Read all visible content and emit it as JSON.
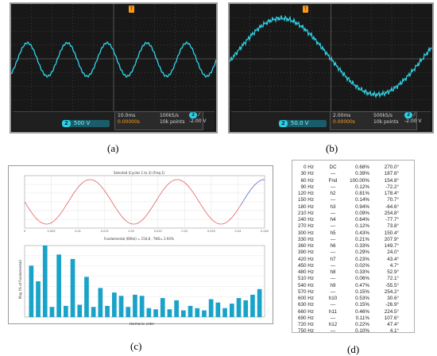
{
  "panel_a": {
    "caption": "(a)",
    "channel_num": "2",
    "volts_div": "500 V",
    "timebase": "10.0ms",
    "sample_rate": "100kS/s",
    "points": "10k points",
    "trigger_channel": "2",
    "trigger_level": "-2.00 V",
    "trigger_delay": "0.00000s",
    "trigger_marker": "T"
  },
  "panel_b": {
    "caption": "(b)",
    "channel_num": "2",
    "volts_div": "50.0 V",
    "timebase": "2.00ms",
    "sample_rate": "500kS/s",
    "points": "10k points",
    "trigger_channel": "2",
    "trigger_level": "-2.00 V",
    "trigger_delay": "0.00000s",
    "trigger_marker": "T"
  },
  "panel_c": {
    "caption": "(c)",
    "wave_title": "Selected (Cycles 1 to 3) (Freq 1)",
    "fft_title": "Fundamental (60Hz) = 154.8 , THD= 2.93%",
    "x_label": "Harmonic order",
    "y_label": "Mag (% of Fundamental)",
    "time_ticks": [
      "0",
      "0.005",
      "0.01",
      "0.015",
      "0.02",
      "0.025",
      "0.03",
      "0.035",
      "0.04",
      "0.045"
    ],
    "chart_data": {
      "type": "bar",
      "values": [
        2.3,
        1.6,
        3.2,
        0.45,
        2.8,
        0.5,
        2.6,
        0.55,
        1.8,
        0.45,
        1.3,
        0.5,
        1.1,
        0.95,
        0.45,
        1.0,
        0.95,
        0.4,
        0.35,
        0.85,
        0.35,
        0.75,
        0.3,
        0.5,
        0.4,
        0.3,
        0.8,
        0.65,
        0.4,
        0.6,
        0.85,
        0.75,
        1.0,
        1.25
      ],
      "ylim": [
        0,
        3.2
      ],
      "series_color": "#1aa3c8"
    }
  },
  "panel_d": {
    "caption": "(d)",
    "rows": [
      [
        "0 Hz",
        "DC",
        "0.68%",
        "270.0°"
      ],
      [
        "30 Hz",
        "—",
        "0.39%",
        "187.8°"
      ],
      [
        "60 Hz",
        "Fnd",
        "100.00%",
        "154.8°"
      ],
      [
        "90 Hz",
        "—",
        "0.12%",
        "-72.2°"
      ],
      [
        "120 Hz",
        "h2",
        "0.81%",
        "178.4°"
      ],
      [
        "150 Hz",
        "—",
        "0.14%",
        "70.7°"
      ],
      [
        "180 Hz",
        "h3",
        "0.94%",
        "-64.6°"
      ],
      [
        "210 Hz",
        "—",
        "0.09%",
        "254.8°"
      ],
      [
        "240 Hz",
        "h4",
        "0.64%",
        "-77.7°"
      ],
      [
        "270 Hz",
        "—",
        "0.12%",
        "73.8°"
      ],
      [
        "300 Hz",
        "h5",
        "0.43%",
        "150.4°"
      ],
      [
        "330 Hz",
        "—",
        "0.21%",
        "207.9°"
      ],
      [
        "360 Hz",
        "h6",
        "0.33%",
        "149.7°"
      ],
      [
        "390 Hz",
        "—",
        "0.29%",
        "24.0°"
      ],
      [
        "420 Hz",
        "h7",
        "0.23%",
        "43.4°"
      ],
      [
        "450 Hz",
        "—",
        "0.02%",
        "4.7°"
      ],
      [
        "480 Hz",
        "h8",
        "0.33%",
        "52.9°"
      ],
      [
        "510 Hz",
        "—",
        "0.06%",
        "72.1°"
      ],
      [
        "540 Hz",
        "h9",
        "0.47%",
        "-55.5°"
      ],
      [
        "570 Hz",
        "—",
        "0.15%",
        "254.2°"
      ],
      [
        "600 Hz",
        "h10",
        "0.53%",
        "30.6°"
      ],
      [
        "630 Hz",
        "—",
        "0.15%",
        "-26.9°"
      ],
      [
        "660 Hz",
        "h11",
        "0.46%",
        "224.5°"
      ],
      [
        "690 Hz",
        "—",
        "0.11%",
        "107.6°"
      ],
      [
        "720 Hz",
        "h12",
        "0.22%",
        "47.4°"
      ],
      [
        "750 Hz",
        "—",
        "0.10%",
        "4.1°"
      ]
    ]
  },
  "colors": {
    "trace": "#2fd6e8",
    "grid": "#5a5a5a",
    "wave_red": "#e06060",
    "wave_blue": "#5a6ad0"
  }
}
